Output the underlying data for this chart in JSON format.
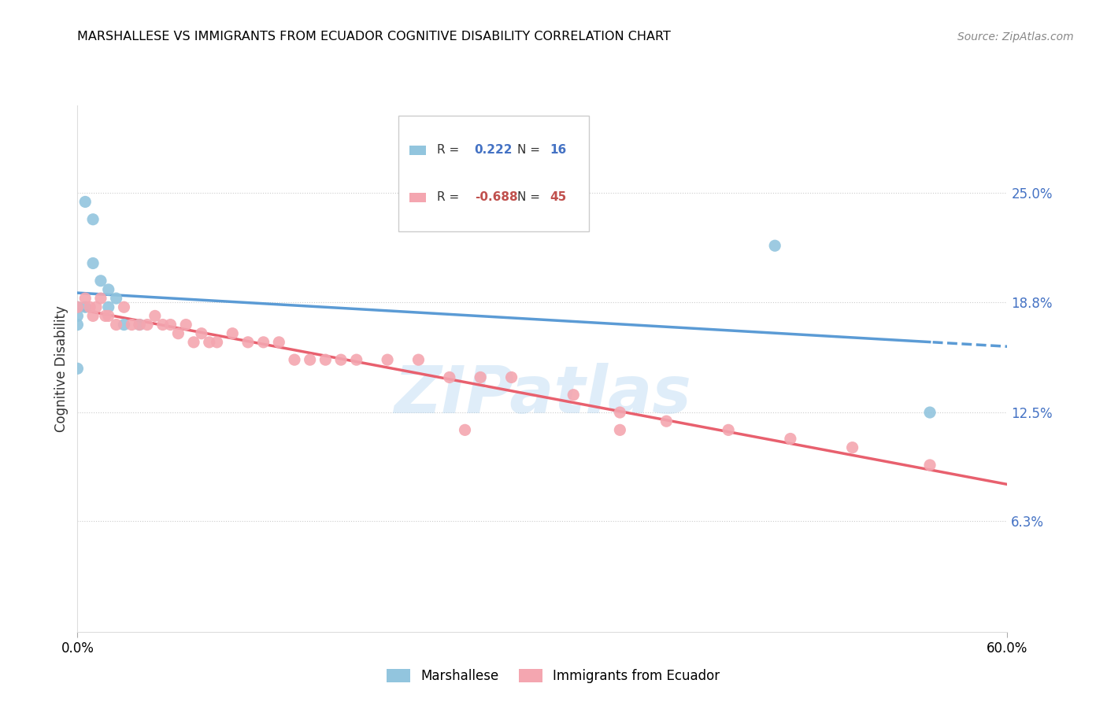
{
  "title": "MARSHALLESE VS IMMIGRANTS FROM ECUADOR COGNITIVE DISABILITY CORRELATION CHART",
  "source": "Source: ZipAtlas.com",
  "ylabel": "Cognitive Disability",
  "right_yticks": [
    "25.0%",
    "18.8%",
    "12.5%",
    "6.3%"
  ],
  "right_ytick_vals": [
    0.25,
    0.188,
    0.125,
    0.063
  ],
  "xlim": [
    0.0,
    0.6
  ],
  "ylim": [
    0.0,
    0.3
  ],
  "marshallese_color": "#92c5de",
  "ecuador_color": "#f4a6b0",
  "trendline1_color": "#5b9bd5",
  "trendline2_color": "#e8606e",
  "watermark": "ZIPatlas",
  "legend_r_color": "#333333",
  "legend_v1_color": "#4472c4",
  "legend_v2_color": "#c0504d",
  "marshallese_points_x": [
    0.005,
    0.01,
    0.01,
    0.015,
    0.02,
    0.025,
    0.02,
    0.005,
    0.0,
    0.0,
    0.0,
    0.03,
    0.04,
    0.0,
    0.45,
    0.55
  ],
  "marshallese_points_y": [
    0.245,
    0.235,
    0.21,
    0.2,
    0.195,
    0.19,
    0.185,
    0.185,
    0.185,
    0.18,
    0.175,
    0.175,
    0.175,
    0.15,
    0.22,
    0.125
  ],
  "ecuador_points_x": [
    0.0,
    0.005,
    0.008,
    0.01,
    0.012,
    0.015,
    0.018,
    0.02,
    0.025,
    0.03,
    0.035,
    0.04,
    0.045,
    0.05,
    0.055,
    0.06,
    0.065,
    0.07,
    0.075,
    0.08,
    0.085,
    0.09,
    0.1,
    0.11,
    0.12,
    0.13,
    0.14,
    0.15,
    0.16,
    0.17,
    0.18,
    0.2,
    0.22,
    0.24,
    0.26,
    0.28,
    0.32,
    0.35,
    0.38,
    0.42,
    0.46,
    0.5,
    0.55,
    0.35,
    0.25
  ],
  "ecuador_points_y": [
    0.185,
    0.19,
    0.185,
    0.18,
    0.185,
    0.19,
    0.18,
    0.18,
    0.175,
    0.185,
    0.175,
    0.175,
    0.175,
    0.18,
    0.175,
    0.175,
    0.17,
    0.175,
    0.165,
    0.17,
    0.165,
    0.165,
    0.17,
    0.165,
    0.165,
    0.165,
    0.155,
    0.155,
    0.155,
    0.155,
    0.155,
    0.155,
    0.155,
    0.145,
    0.145,
    0.145,
    0.135,
    0.125,
    0.12,
    0.115,
    0.11,
    0.105,
    0.095,
    0.115,
    0.115
  ]
}
